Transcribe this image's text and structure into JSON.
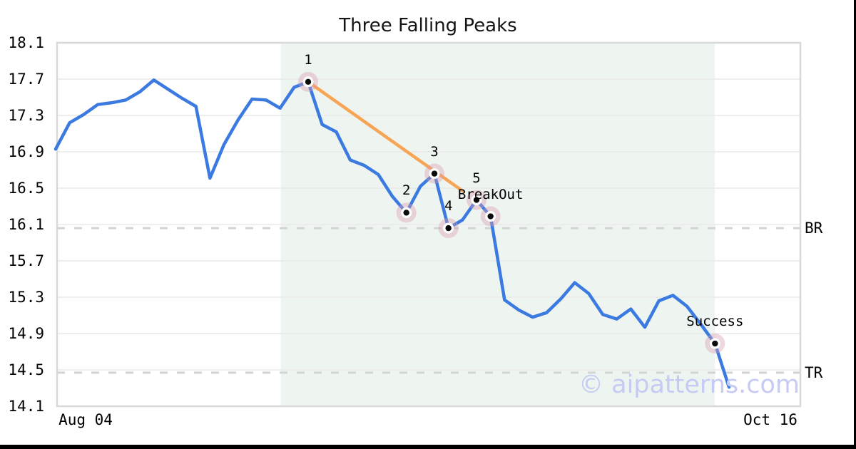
{
  "chart_data": {
    "type": "line",
    "title": "Three Falling Peaks",
    "xlabel": "",
    "ylabel": "",
    "ylim": [
      14.1,
      18.1
    ],
    "grid": true,
    "y_ticks": [
      18.1,
      17.7,
      17.3,
      16.9,
      16.5,
      16.1,
      15.7,
      15.3,
      14.9,
      14.5,
      14.1
    ],
    "x_ticks": [
      {
        "label": "Aug 04",
        "pos_frac": 0.0384
      },
      {
        "label": "Oct 16",
        "pos_frac": 0.9597
      }
    ],
    "series": [
      {
        "name": "price",
        "values": [
          16.93,
          17.22,
          17.31,
          17.42,
          17.44,
          17.47,
          17.56,
          17.69,
          17.59,
          17.49,
          17.4,
          16.61,
          16.98,
          17.25,
          17.48,
          17.47,
          17.38,
          17.61,
          17.67,
          17.2,
          17.12,
          16.81,
          16.75,
          16.65,
          16.41,
          16.23,
          16.52,
          16.66,
          16.06,
          16.15,
          16.37,
          16.19,
          15.27,
          15.16,
          15.08,
          15.13,
          15.28,
          15.46,
          15.34,
          15.11,
          15.06,
          15.17,
          14.97,
          15.26,
          15.32,
          15.2,
          15.0,
          14.79,
          14.31
        ]
      }
    ],
    "annotations": [
      {
        "index": 18,
        "label": "1",
        "value": 17.67
      },
      {
        "index": 25,
        "label": "2",
        "value": 16.23
      },
      {
        "index": 27,
        "label": "3",
        "value": 16.66
      },
      {
        "index": 28,
        "label": "4",
        "value": 16.06
      },
      {
        "index": 30,
        "label": "5",
        "value": 16.37
      },
      {
        "index": 31,
        "label": "BreakOut",
        "value": 16.19
      },
      {
        "index": 47,
        "label": "Success",
        "value": 14.79
      }
    ],
    "trendline": {
      "from": {
        "index": 18,
        "value": 17.67
      },
      "to": {
        "index": 29,
        "value": 16.47
      }
    },
    "hlines": [
      {
        "label": "BR",
        "value": 16.06
      },
      {
        "label": "TR",
        "value": 14.47
      }
    ],
    "shaded_region": {
      "start_index": 16.05,
      "end_index": 47.0
    },
    "colors": {
      "line": "#3b7ae0",
      "trend": "#f7a554",
      "shade": "#eef5f1",
      "grid": "#e8e8e8",
      "spine": "#d8d8d8",
      "dashed": "#d4d4d4",
      "marker_halo": "rgba(216,156,176,0.40)",
      "marker_dot": "#0a0a0a"
    }
  },
  "watermark": {
    "text": "© aipatterns.com"
  }
}
